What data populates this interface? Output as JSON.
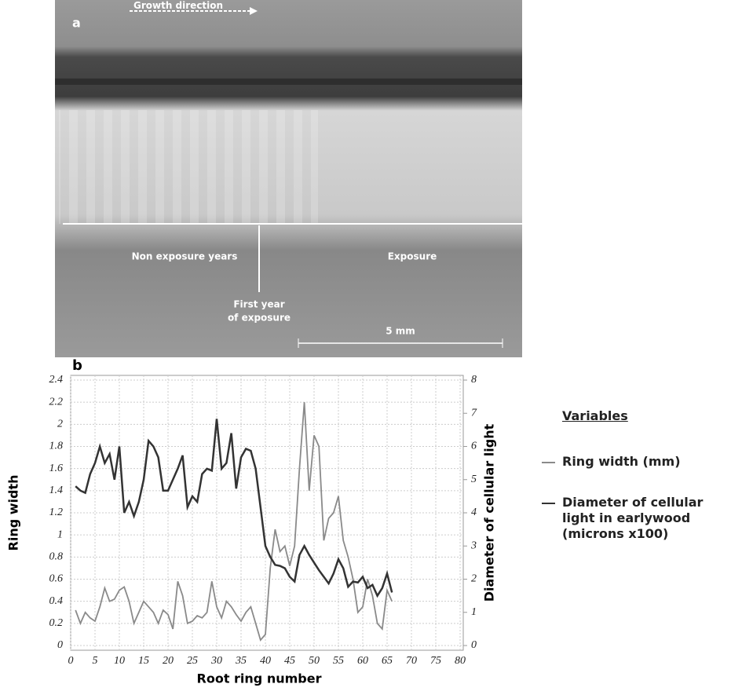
{
  "photo": {
    "panel_label": "a",
    "growth_label": "Growth direction",
    "non_exposure_label": "Non exposure years",
    "exposure_label": "Exposure",
    "first_year_label": [
      "First year",
      "of exposure"
    ],
    "scale_label": "5 mm"
  },
  "chart_data": {
    "type": "line",
    "panel_label": "b",
    "x_label": "Root ring number",
    "y_label": "Ring width",
    "y2_label": "Diameter of cellular light",
    "legend_title": "Variables",
    "grid": true,
    "x": [
      1,
      2,
      3,
      4,
      5,
      6,
      7,
      8,
      9,
      10,
      11,
      12,
      13,
      14,
      15,
      16,
      17,
      18,
      19,
      20,
      21,
      22,
      23,
      24,
      25,
      26,
      27,
      28,
      29,
      30,
      31,
      32,
      33,
      34,
      35,
      36,
      37,
      38,
      39,
      40,
      41,
      42,
      43,
      44,
      45,
      46,
      47,
      48,
      49,
      50,
      51,
      52,
      53,
      54,
      55,
      56,
      57,
      58,
      59,
      60,
      61,
      62,
      63,
      64,
      65,
      66
    ],
    "xlim": [
      0,
      80
    ],
    "xticks": [
      0,
      5,
      10,
      15,
      20,
      25,
      30,
      35,
      40,
      45,
      50,
      55,
      60,
      65,
      70,
      75,
      80
    ],
    "ylim": [
      0,
      2.4
    ],
    "yticks": [
      0,
      0.2,
      0.4,
      0.6,
      0.8,
      1,
      1.2,
      1.4,
      1.6,
      1.8,
      2,
      2.2,
      2.4
    ],
    "y2lim": [
      0,
      8
    ],
    "y2ticks": [
      0,
      1,
      2,
      3,
      4,
      5,
      6,
      7,
      8
    ],
    "series": [
      {
        "name": "Ring width (mm)",
        "color": "#8a8a8a",
        "values": [
          0.32,
          0.2,
          0.3,
          0.25,
          0.22,
          0.35,
          0.52,
          0.4,
          0.42,
          0.5,
          0.53,
          0.4,
          0.2,
          0.3,
          0.4,
          0.35,
          0.3,
          0.2,
          0.32,
          0.28,
          0.15,
          0.58,
          0.45,
          0.2,
          0.22,
          0.27,
          0.25,
          0.3,
          0.58,
          0.35,
          0.25,
          0.4,
          0.35,
          0.28,
          0.22,
          0.3,
          0.35,
          0.2,
          0.05,
          0.1,
          0.7,
          1.05,
          0.85,
          0.9,
          0.72,
          0.9,
          1.6,
          2.2,
          1.4,
          1.9,
          1.8,
          0.95,
          1.15,
          1.2,
          1.35,
          0.95,
          0.8,
          0.6,
          0.3,
          0.35,
          0.6,
          0.45,
          0.2,
          0.15,
          0.5,
          0.4
        ]
      },
      {
        "name": "Diameter of cellular light in earlywood (microns x100)",
        "color": "#333333",
        "axis": "y2",
        "values": [
          4.8,
          4.67,
          4.6,
          5.17,
          5.5,
          6,
          5.5,
          5.77,
          5,
          6,
          4,
          4.33,
          3.9,
          4.33,
          5,
          6.17,
          6,
          5.67,
          4.67,
          4.67,
          5,
          5.33,
          5.73,
          4.17,
          4.5,
          4.33,
          5.17,
          5.33,
          5.27,
          6.83,
          5.33,
          5.5,
          6.4,
          4.73,
          5.67,
          5.93,
          5.87,
          5.33,
          4.17,
          3,
          2.67,
          2.43,
          2.4,
          2.33,
          2.07,
          1.93,
          2.73,
          3,
          2.73,
          2.5,
          2.27,
          2.07,
          1.87,
          2.17,
          2.6,
          2.33,
          1.77,
          1.93,
          1.9,
          2.07,
          1.73,
          1.83,
          1.5,
          1.73,
          2.17,
          1.6
        ]
      }
    ]
  }
}
